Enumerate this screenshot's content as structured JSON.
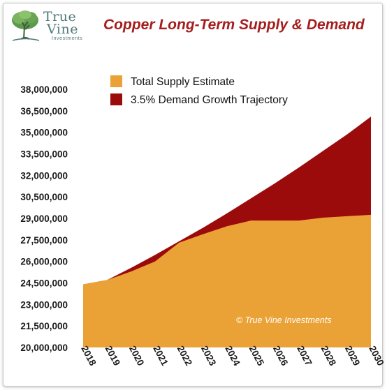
{
  "logo": {
    "line1": "True",
    "line2": "Vine",
    "line3": "Investments",
    "icon": "tree-icon"
  },
  "chart_data": {
    "type": "area",
    "title": "Copper Long-Term Supply & Demand",
    "xlabel": "",
    "ylabel": "",
    "x": [
      "2018",
      "2019",
      "2020",
      "2021",
      "2022",
      "2023",
      "2024",
      "2025",
      "2026",
      "2027",
      "2028",
      "2029",
      "2030"
    ],
    "ylim": [
      20000000,
      38000000
    ],
    "yticks": [
      20000000,
      21500000,
      23000000,
      24500000,
      26000000,
      27500000,
      29000000,
      30500000,
      32000000,
      33500000,
      35000000,
      36500000,
      38000000
    ],
    "ytick_labels": [
      "20,000,000",
      "21,500,000",
      "23,000,000",
      "24,500,000",
      "26,000,000",
      "27,500,000",
      "29,000,000",
      "30,500,000",
      "32,000,000",
      "33,500,000",
      "35,000,000",
      "36,500,000",
      "38,000,000"
    ],
    "series": [
      {
        "name": "3.5% Demand Growth Trajectory",
        "color": "#9b0b0b",
        "values": [
          24400000,
          24700000,
          25550000,
          26450000,
          27400000,
          28350000,
          29350000,
          30400000,
          31450000,
          32550000,
          33700000,
          34850000,
          36100000
        ]
      },
      {
        "name": "Total Supply Estimate",
        "color": "#eaa236",
        "values": [
          24400000,
          24700000,
          25300000,
          26000000,
          27300000,
          27900000,
          28450000,
          28850000,
          28850000,
          28850000,
          29050000,
          29150000,
          29250000
        ]
      }
    ],
    "legend_position": "top-left",
    "grid": false,
    "annotation": "© True Vine Investments"
  }
}
